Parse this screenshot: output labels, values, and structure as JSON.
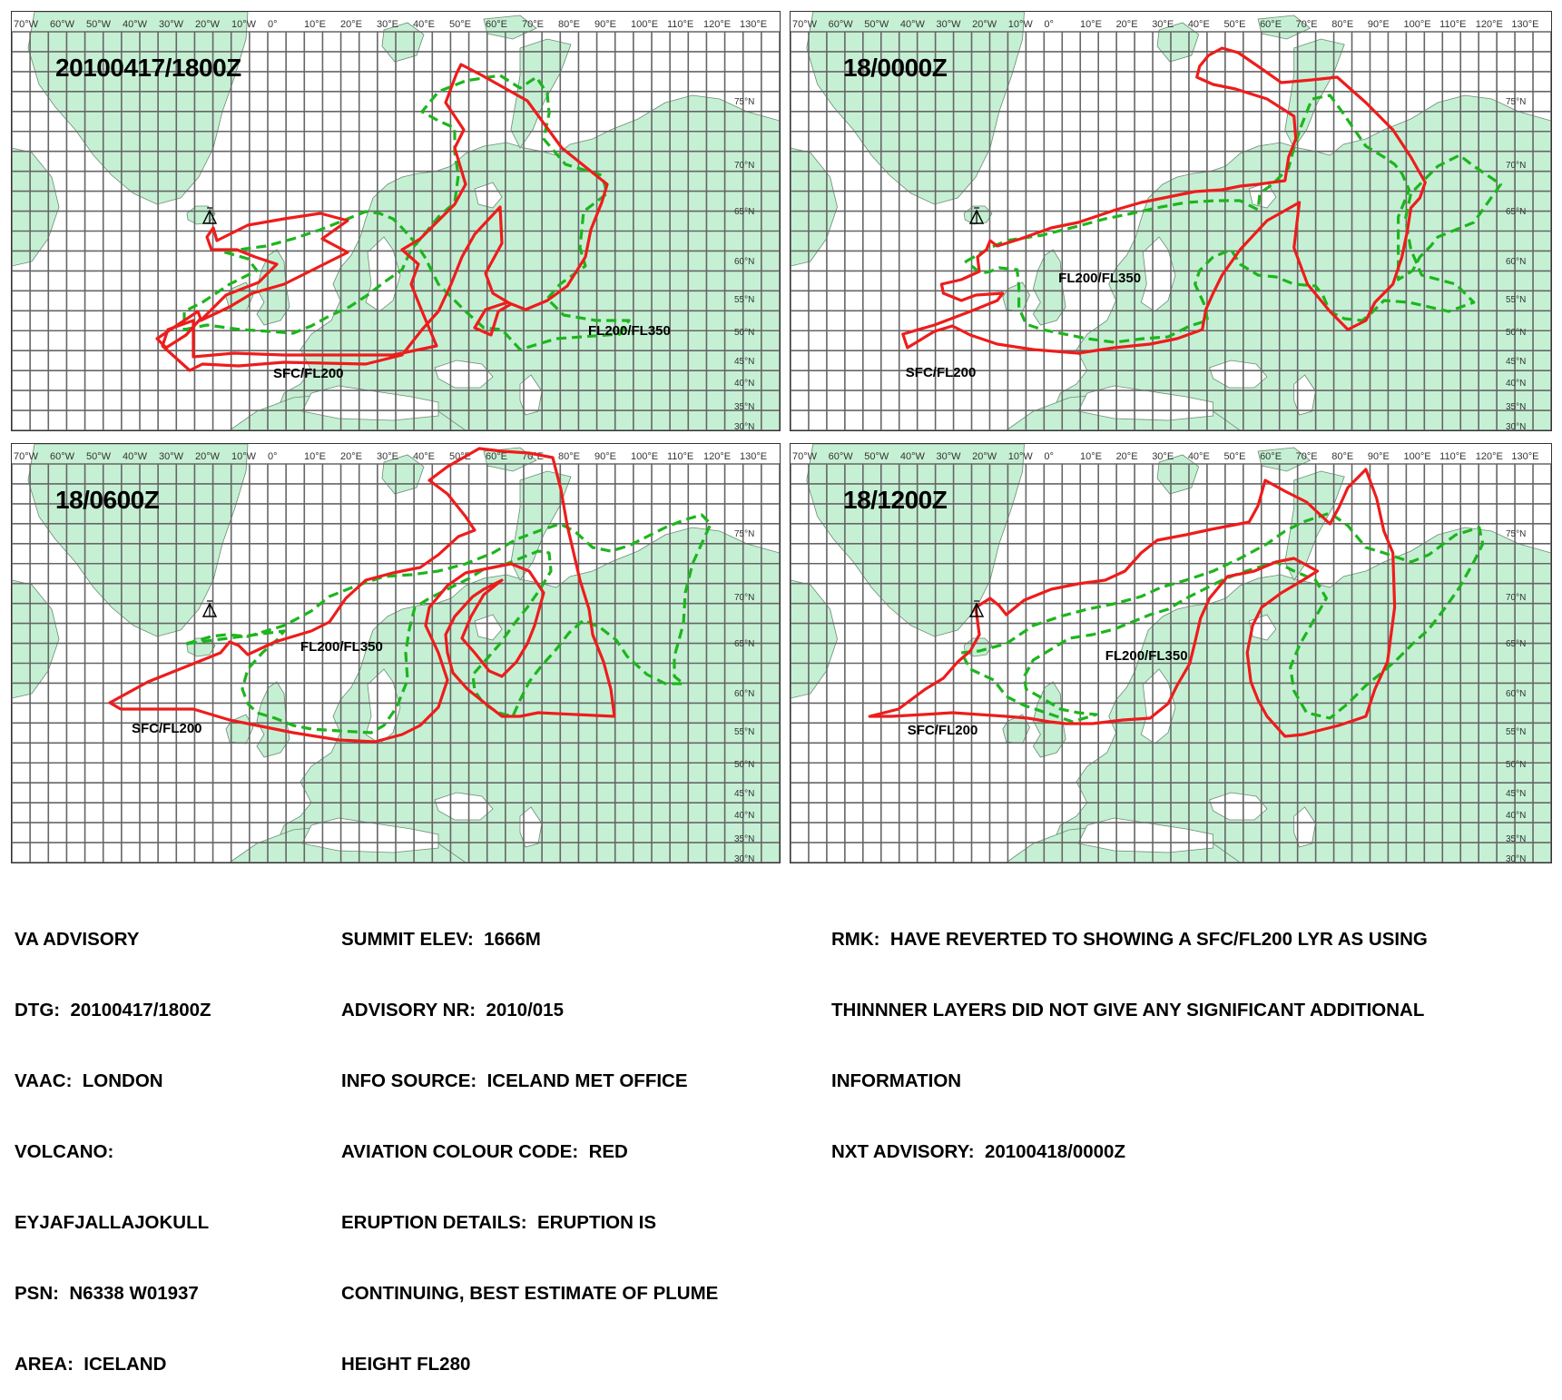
{
  "colors": {
    "land": "#c6f0d4",
    "coast": "#6a8a72",
    "grid": "#666666",
    "sfc_fl200": "#ee1c1c",
    "fl200_fl350": "#1db51d"
  },
  "lon_labels": [
    "70°W",
    "60°W",
    "50°W",
    "40°W",
    "30°W",
    "20°W",
    "10°W",
    "0°",
    "10°E",
    "20°E",
    "30°E",
    "40°E",
    "50°E",
    "60°E",
    "70°E",
    "80°E",
    "90°E",
    "100°E",
    "110°E",
    "120°E",
    "130°E"
  ],
  "lat_labels": [
    "75°N",
    "70°N",
    "65°N",
    "60°N",
    "55°N",
    "50°N",
    "45°N",
    "40°N",
    "35°N",
    "30°N"
  ],
  "volcano_icon": "volcano-icon",
  "panels": [
    {
      "id": "p1",
      "title": "20100417/1800Z",
      "labels": {
        "sfc": "SFC/FL200",
        "fl": "FL200/FL350"
      }
    },
    {
      "id": "p2",
      "title": "18/0000Z",
      "labels": {
        "sfc": "SFC/FL200",
        "fl": "FL200/FL350"
      }
    },
    {
      "id": "p3",
      "title": "18/0600Z",
      "labels": {
        "sfc": "SFC/FL200",
        "fl": "FL200/FL350"
      }
    },
    {
      "id": "p4",
      "title": "18/1200Z",
      "labels": {
        "sfc": "SFC/FL200",
        "fl": "FL200/FL350"
      }
    }
  ],
  "advisory": {
    "col1": [
      "VA ADVISORY",
      "DTG:  20100417/1800Z",
      "VAAC:  LONDON",
      "VOLCANO:",
      "EYJAFJALLAJOKULL",
      "PSN:  N6338 W01937",
      "AREA:  ICELAND"
    ],
    "col2": [
      "SUMMIT ELEV:  1666M",
      "ADVISORY NR:  2010/015",
      "INFO SOURCE:  ICELAND MET OFFICE",
      "AVIATION COLOUR CODE:  RED",
      "ERUPTION DETAILS:  ERUPTION IS",
      "CONTINUING, BEST ESTIMATE OF PLUME",
      "HEIGHT FL280"
    ],
    "col3": [
      "RMK:  HAVE REVERTED TO SHOWING A SFC/FL200 LYR AS USING",
      "THINNNER LAYERS DID NOT GIVE ANY SIGNIFICANT ADDITIONAL",
      "INFORMATION",
      "NXT ADVISORY:  20100418/0000Z"
    ]
  }
}
